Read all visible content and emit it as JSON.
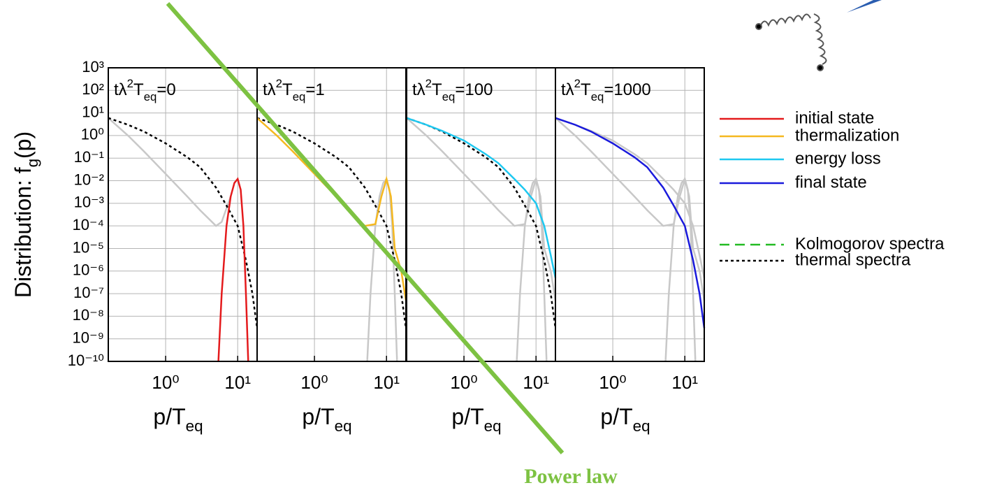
{
  "chart_data": {
    "type": "line",
    "xlog": true,
    "ylog": true,
    "grid": true,
    "ylabel": [
      "Distribution: f",
      "g",
      "(p)"
    ],
    "xlabel": [
      "p/T",
      "eq"
    ],
    "xlim": [
      0.16,
      18.6
    ],
    "ylim": [
      1e-10,
      1000
    ],
    "xticks": [
      {
        "value": 1,
        "label": "10⁰"
      },
      {
        "value": 10,
        "label": "10¹"
      }
    ],
    "yticks": [
      {
        "value": 1000,
        "label": "10³"
      },
      {
        "value": 100,
        "label": "10²"
      },
      {
        "value": 10,
        "label": "10¹"
      },
      {
        "value": 1,
        "label": "10⁰"
      },
      {
        "value": 0.1,
        "label": "10⁻¹"
      },
      {
        "value": 0.01,
        "label": "10⁻²"
      },
      {
        "value": 0.001,
        "label": "10⁻³"
      },
      {
        "value": 0.0001,
        "label": "10⁻⁴"
      },
      {
        "value": 1e-05,
        "label": "10⁻⁵"
      },
      {
        "value": 1e-06,
        "label": "10⁻⁶"
      },
      {
        "value": 1e-07,
        "label": "10⁻⁷"
      },
      {
        "value": 1e-08,
        "label": "10⁻⁸"
      },
      {
        "value": 1e-09,
        "label": "10⁻⁹"
      },
      {
        "value": 1e-10,
        "label": "10⁻¹⁰"
      }
    ],
    "panels": [
      {
        "title": [
          "tλ",
          "2",
          "T",
          "eq",
          "=0"
        ],
        "series": [
          {
            "color": "#c8c8c8",
            "dash": "solid",
            "x": [
              0.16,
              0.3,
              0.5,
              1,
              2,
              3,
              5,
              6,
              8
            ],
            "values": [
              6,
              1,
              0.2,
              0.02,
              0.002,
              0.0005,
              0.0001,
              0.00015,
              0.002
            ]
          },
          {
            "color": "#000000",
            "dash": "dotted",
            "x": [
              0.16,
              0.3,
              0.5,
              1,
              2,
              3,
              5,
              7,
              10,
              13,
              16,
              18.6
            ],
            "values": [
              6,
              3,
              1.5,
              0.45,
              0.11,
              0.04,
              0.005,
              0.0008,
              0.0001,
              3e-06,
              1e-07,
              3e-09
            ]
          },
          {
            "color": "#e41a1c",
            "dash": "solid",
            "x": [
              5.4,
              6,
              7,
              8,
              9,
              10,
              11,
              12,
              13,
              14
            ],
            "values": [
              1e-10,
              1e-07,
              0.0001,
              0.002,
              0.008,
              0.012,
              0.004,
              0.0001,
              1e-07,
              1e-10
            ]
          }
        ]
      },
      {
        "title": [
          "tλ",
          "2",
          "T",
          "eq",
          "=1"
        ],
        "series": [
          {
            "color": "#c8c8c8",
            "dash": "solid",
            "x": [
              5.4,
              6,
              7,
              8,
              9,
              10,
              11,
              12,
              13,
              14
            ],
            "values": [
              1e-10,
              1e-07,
              0.0001,
              0.002,
              0.008,
              0.012,
              0.004,
              0.0001,
              1e-07,
              1e-10
            ]
          },
          {
            "color": "#000000",
            "dash": "dotted",
            "x": [
              0.16,
              0.3,
              0.5,
              1,
              2,
              3,
              5,
              7,
              10,
              13,
              16,
              18.6
            ],
            "values": [
              6,
              3,
              1.5,
              0.45,
              0.11,
              0.04,
              0.005,
              0.0008,
              0.0001,
              3e-06,
              1e-07,
              3e-09
            ]
          },
          {
            "color": "#f5b820",
            "dash": "solid",
            "x": [
              0.16,
              0.3,
              0.5,
              1,
              2,
              3,
              5,
              7,
              8.5,
              10,
              11.5,
              13,
              16,
              18.6
            ],
            "values": [
              6,
              1,
              0.2,
              0.02,
              0.002,
              0.0005,
              0.0001,
              0.00012,
              0.002,
              0.012,
              0.002,
              1e-05,
              1e-06,
              5e-08
            ]
          }
        ]
      },
      {
        "title": [
          "tλ",
          "2",
          "T",
          "eq",
          "=100"
        ],
        "series": [
          {
            "color": "#c8c8c8",
            "dash": "solid",
            "x": [
              0.16,
              0.3,
              0.5,
              1,
              2,
              3,
              5,
              7,
              8.5,
              10,
              11.5,
              13,
              16,
              18.6
            ],
            "values": [
              6,
              1,
              0.2,
              0.02,
              0.002,
              0.0005,
              0.0001,
              0.00012,
              0.002,
              0.012,
              0.002,
              1e-05,
              1e-06,
              5e-08
            ]
          },
          {
            "color": "#c8c8c8",
            "dash": "solid",
            "x": [
              5.4,
              6,
              7,
              8,
              9,
              10,
              11,
              12,
              13,
              14
            ],
            "values": [
              1e-10,
              1e-07,
              0.0001,
              0.002,
              0.008,
              0.012,
              0.004,
              0.0001,
              1e-07,
              1e-10
            ]
          },
          {
            "color": "#000000",
            "dash": "dotted",
            "x": [
              0.16,
              0.3,
              0.5,
              1,
              2,
              3,
              5,
              7,
              10,
              13,
              16,
              18.6
            ],
            "values": [
              6,
              3,
              1.5,
              0.45,
              0.11,
              0.04,
              0.005,
              0.0008,
              0.0001,
              3e-06,
              1e-07,
              3e-09
            ]
          },
          {
            "color": "#1ec8f0",
            "dash": "solid",
            "x": [
              0.16,
              0.3,
              0.5,
              1,
              2,
              3,
              5,
              7,
              10,
              13,
              16,
              18.6
            ],
            "values": [
              6,
              3,
              1.6,
              0.6,
              0.15,
              0.06,
              0.012,
              0.004,
              0.001,
              0.0001,
              5e-06,
              5e-07
            ]
          }
        ]
      },
      {
        "title": [
          "tλ",
          "2",
          "T",
          "eq",
          "=1000"
        ],
        "series": [
          {
            "color": "#c8c8c8",
            "dash": "solid",
            "x": [
              0.16,
              0.3,
              0.5,
              1,
              2,
              3,
              5,
              7,
              10,
              13,
              16,
              18.6
            ],
            "values": [
              6,
              3,
              1.6,
              0.6,
              0.15,
              0.06,
              0.012,
              0.004,
              0.001,
              0.0001,
              5e-06,
              5e-07
            ]
          },
          {
            "color": "#c8c8c8",
            "dash": "solid",
            "x": [
              0.16,
              0.3,
              0.5,
              1,
              2,
              3,
              5,
              7,
              8.5,
              10,
              11.5,
              13,
              16,
              18.6
            ],
            "values": [
              6,
              1,
              0.2,
              0.02,
              0.002,
              0.0005,
              0.0001,
              0.00012,
              0.002,
              0.012,
              0.002,
              1e-05,
              1e-06,
              5e-08
            ]
          },
          {
            "color": "#c8c8c8",
            "dash": "solid",
            "x": [
              5.4,
              6,
              7,
              8,
              9,
              10,
              11,
              12,
              13,
              14
            ],
            "values": [
              1e-10,
              1e-07,
              0.0001,
              0.002,
              0.008,
              0.012,
              0.004,
              0.0001,
              1e-07,
              1e-10
            ]
          },
          {
            "color": "#1a1adc",
            "dash": "solid",
            "x": [
              0.16,
              0.3,
              0.5,
              1,
              2,
              3,
              5,
              7,
              10,
              13,
              16,
              18.6
            ],
            "values": [
              6,
              3,
              1.5,
              0.45,
              0.11,
              0.04,
              0.005,
              0.0008,
              0.0001,
              3e-06,
              1e-07,
              3e-09
            ]
          }
        ]
      }
    ],
    "legend": [
      {
        "name": "initial state",
        "color": "#e41a1c",
        "dash": "solid"
      },
      {
        "name": "thermalization",
        "color": "#f5b820",
        "dash": "solid"
      },
      {
        "name": "energy loss",
        "color": "#1ec8f0",
        "dash": "solid"
      },
      {
        "name": "final state",
        "color": "#1a1adc",
        "dash": "solid"
      },
      {
        "name": "Kolmogorov spectra",
        "color": "#22bb22",
        "dash": "dashed"
      },
      {
        "name": "thermal spectra",
        "color": "#000000",
        "dash": "dotted"
      }
    ],
    "annotation": "Power law"
  }
}
